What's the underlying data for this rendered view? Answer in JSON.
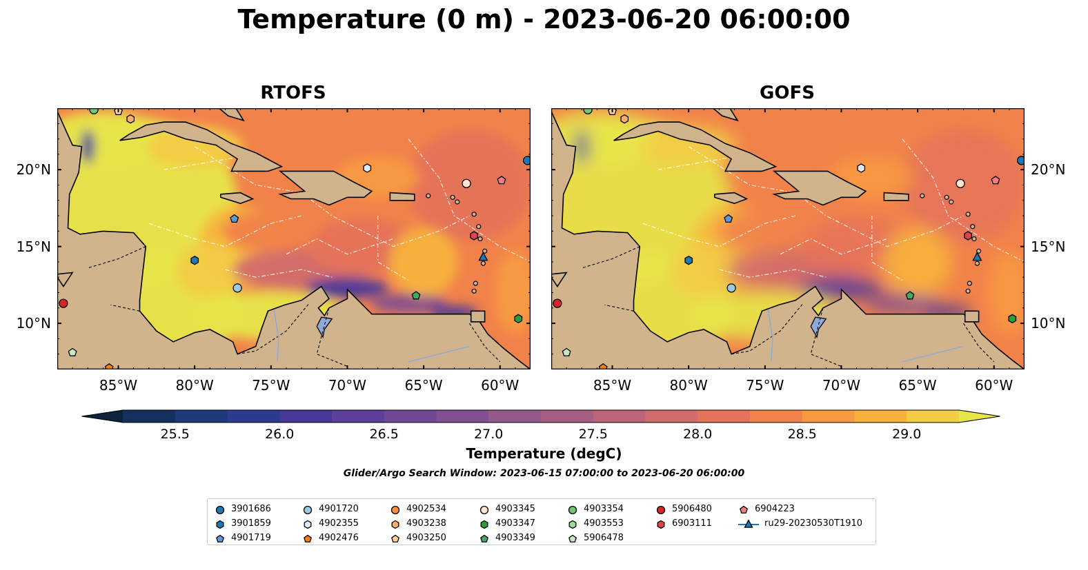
{
  "title": "Temperature (0 m) - 2023-06-20 06:00:00",
  "panels": [
    {
      "title": "RTOFS"
    },
    {
      "title": "GOFS"
    }
  ],
  "map": {
    "lon_range": [
      -89,
      -58
    ],
    "lat_range": [
      7,
      24
    ],
    "lon_ticks": [
      {
        "lon": -85,
        "label": "85°W"
      },
      {
        "lon": -80,
        "label": "80°W"
      },
      {
        "lon": -75,
        "label": "75°W"
      },
      {
        "lon": -70,
        "label": "70°W"
      },
      {
        "lon": -65,
        "label": "65°W"
      },
      {
        "lon": -60,
        "label": "60°W"
      }
    ],
    "lat_ticks": [
      {
        "lat": 20,
        "label": "20°N"
      },
      {
        "lat": 15,
        "label": "15°N"
      },
      {
        "lat": 10,
        "label": "10°N"
      }
    ],
    "land_color": "#d2b48c",
    "lake_color": "#8eaadb"
  },
  "colorbar": {
    "label": "Temperature (degC)",
    "min": 25.25,
    "max": 29.25,
    "step": 0.25,
    "extend": "both",
    "ticks": [
      "25.5",
      "26.0",
      "26.5",
      "27.0",
      "27.5",
      "28.0",
      "28.5",
      "29.0"
    ],
    "colors": [
      "#0b2439",
      "#16305e",
      "#1d3a7c",
      "#2c3b8f",
      "#46399a",
      "#5c3f99",
      "#6f4895",
      "#825090",
      "#945a8b",
      "#a85f84",
      "#bd6578",
      "#d26c6c",
      "#e5735a",
      "#f1824a",
      "#f89a40",
      "#f8b23c",
      "#f3cc46",
      "#e7e649"
    ]
  },
  "search_window": "Glider/Argo Search Window: 2023-06-15 07:00:00 to 2023-06-20 06:00:00",
  "legend": {
    "columns": [
      [
        {
          "label": "3901686",
          "marker": "circle",
          "color": "#1f77b4"
        },
        {
          "label": "3901859",
          "marker": "hexagon",
          "color": "#1f77b4"
        },
        {
          "label": "4901719",
          "marker": "pentagon",
          "color": "#5b9bd5"
        }
      ],
      [
        {
          "label": "4901720",
          "marker": "circle",
          "color": "#9ecae1"
        },
        {
          "label": "4902355",
          "marker": "hexagon",
          "color": "#deebf7"
        },
        {
          "label": "4902476",
          "marker": "pentagon",
          "color": "#f77f0e"
        }
      ],
      [
        {
          "label": "4902534",
          "marker": "circle",
          "color": "#fd8d3c"
        },
        {
          "label": "4903238",
          "marker": "hexagon",
          "color": "#fdae6b"
        },
        {
          "label": "4903250",
          "marker": "pentagon",
          "color": "#fdd0a2"
        }
      ],
      [
        {
          "label": "4903345",
          "marker": "circle",
          "color": "#fee6ce"
        },
        {
          "label": "4903347",
          "marker": "hexagon",
          "color": "#2ca02c"
        },
        {
          "label": "4903349",
          "marker": "pentagon",
          "color": "#41ab5d"
        }
      ],
      [
        {
          "label": "4903354",
          "marker": "circle",
          "color": "#74c476"
        },
        {
          "label": "4903553",
          "marker": "hexagon",
          "color": "#a1d99b"
        },
        {
          "label": "5906478",
          "marker": "pentagon",
          "color": "#c7e9c0"
        }
      ],
      [
        {
          "label": "5906480",
          "marker": "circle",
          "color": "#d62728"
        },
        {
          "label": "6903111",
          "marker": "hexagon",
          "color": "#e0434a"
        }
      ],
      [
        {
          "label": "6904223",
          "marker": "pentagon",
          "color": "#f08080"
        },
        {
          "label": "ru29-20230530T1910",
          "marker": "triangle-line",
          "color": "#1f77b4"
        }
      ]
    ]
  },
  "floats": [
    {
      "id": "3901686",
      "marker": "circle",
      "color": "#1f77b4",
      "lon": -58.2,
      "lat": 20.6
    },
    {
      "id": "4901719",
      "marker": "pentagon",
      "color": "#5b9bd5",
      "lon": -77.4,
      "lat": 16.8
    },
    {
      "id": "4902355",
      "marker": "hexagon",
      "color": "#deebf7",
      "lon": -68.7,
      "lat": 20.1
    },
    {
      "id": "3901859",
      "marker": "hexagon",
      "color": "#1f77b4",
      "lon": -80.0,
      "lat": 14.1
    },
    {
      "id": "4901720",
      "marker": "circle",
      "color": "#9ecae1",
      "lon": -77.2,
      "lat": 12.3
    },
    {
      "id": "4903345",
      "marker": "circle",
      "color": "#fee6ce",
      "lon": -62.2,
      "lat": 19.1
    },
    {
      "id": "6904223",
      "marker": "pentagon",
      "color": "#f08080",
      "lon": -59.9,
      "lat": 19.3
    },
    {
      "id": "6903111",
      "marker": "hexagon",
      "color": "#e0434a",
      "lon": -61.7,
      "lat": 15.7
    },
    {
      "id": "4903349",
      "marker": "pentagon",
      "color": "#41ab5d",
      "lon": -65.5,
      "lat": 11.8
    },
    {
      "id": "4903347",
      "marker": "hexagon",
      "color": "#2ca02c",
      "lon": -58.8,
      "lat": 10.3
    },
    {
      "id": "5906480",
      "marker": "circle",
      "color": "#d62728",
      "lon": -88.6,
      "lat": 11.3
    },
    {
      "id": "5906478",
      "marker": "pentagon",
      "color": "#c7e9c0",
      "lon": -88.0,
      "lat": 8.1
    },
    {
      "id": "4903354",
      "marker": "circle",
      "color": "#74c476",
      "lon": -86.6,
      "lat": 23.9
    },
    {
      "id": "4903250",
      "marker": "pentagon",
      "color": "#fdd0a2",
      "lon": -85.0,
      "lat": 23.8
    },
    {
      "id": "4903238",
      "marker": "hexagon",
      "color": "#fdae6b",
      "lon": -84.2,
      "lat": 23.3
    },
    {
      "id": "4902476",
      "marker": "pentagon",
      "color": "#f77f0e",
      "lon": -85.6,
      "lat": 7.1
    },
    {
      "id": "ru29-20230530T1910",
      "marker": "triangle",
      "color": "#1f77b4",
      "lon": -61.1,
      "lat": 14.3
    }
  ]
}
